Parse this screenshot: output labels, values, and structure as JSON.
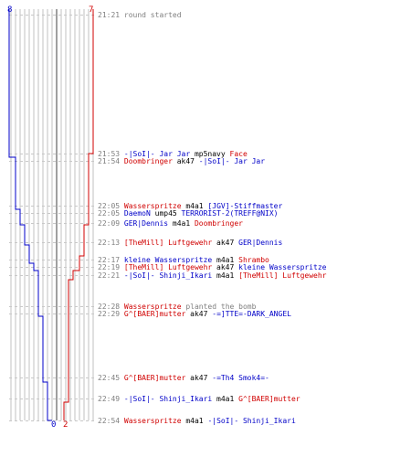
{
  "scoreboard": {
    "blue_start": "8",
    "red_start": "7",
    "blue_end": "0",
    "red_end": "2"
  },
  "colors": {
    "blue": "#0000c8",
    "red": "#d00000",
    "grey": "#7f7f7f",
    "gridline": "#c0c0c0",
    "dash": "#c8c8c8"
  },
  "events": [
    {
      "time": "21:21",
      "parts": [
        {
          "text": "round started",
          "color": "grey"
        }
      ]
    },
    {
      "time": "21:53",
      "parts": [
        {
          "text": "-|SoI|- Jar Jar",
          "color": "blue"
        },
        {
          "text": " mp5navy ",
          "color": "black"
        },
        {
          "text": "Face",
          "color": "red"
        }
      ]
    },
    {
      "time": "21:54",
      "parts": [
        {
          "text": "Doombringer",
          "color": "red"
        },
        {
          "text": " ak47 ",
          "color": "black"
        },
        {
          "text": "-|SoI|- Jar Jar",
          "color": "blue"
        }
      ]
    },
    {
      "time": "22:05",
      "parts": [
        {
          "text": "Wasserspritze",
          "color": "red"
        },
        {
          "text": " m4a1 ",
          "color": "black"
        },
        {
          "text": "[JGV]-Stiffmaster",
          "color": "blue"
        }
      ]
    },
    {
      "time": "22:05",
      "parts": [
        {
          "text": "DaemoN",
          "color": "blue"
        },
        {
          "text": " ump45 ",
          "color": "black"
        },
        {
          "text": "TERRORIST-2(TREFF@NIX)",
          "color": "blue"
        }
      ]
    },
    {
      "time": "22:09",
      "parts": [
        {
          "text": "GER|Dennis",
          "color": "blue"
        },
        {
          "text": " m4a1 ",
          "color": "black"
        },
        {
          "text": "Doombringer",
          "color": "red"
        }
      ]
    },
    {
      "time": "22:13",
      "parts": [
        {
          "text": "[TheMill] Luftgewehr",
          "color": "red"
        },
        {
          "text": " ak47 ",
          "color": "black"
        },
        {
          "text": "GER|Dennis",
          "color": "blue"
        }
      ]
    },
    {
      "time": "22:17",
      "parts": [
        {
          "text": "kleine Wasserspritze",
          "color": "blue"
        },
        {
          "text": " m4a1 ",
          "color": "black"
        },
        {
          "text": "Shrambo",
          "color": "red"
        }
      ]
    },
    {
      "time": "22:19",
      "parts": [
        {
          "text": "[TheMill] Luftgewehr",
          "color": "red"
        },
        {
          "text": " ak47 ",
          "color": "black"
        },
        {
          "text": "kleine Wasserspritze",
          "color": "blue"
        }
      ]
    },
    {
      "time": "22:21",
      "parts": [
        {
          "text": "-|SoI|- Shinji_Ikari",
          "color": "blue"
        },
        {
          "text": " m4a1 ",
          "color": "black"
        },
        {
          "text": "[TheMill] Luftgewehr",
          "color": "red"
        }
      ]
    },
    {
      "time": "22:28",
      "parts": [
        {
          "text": "Wasserspritze",
          "color": "red"
        },
        {
          "text": " planted the bomb",
          "color": "grey"
        }
      ]
    },
    {
      "time": "22:29",
      "parts": [
        {
          "text": "G^[BAER]mutter",
          "color": "red"
        },
        {
          "text": " ak47 ",
          "color": "black"
        },
        {
          "text": "-=]TTE=-DARK_ANGEL",
          "color": "blue"
        }
      ]
    },
    {
      "time": "22:45",
      "parts": [
        {
          "text": "G^[BAER]mutter",
          "color": "red"
        },
        {
          "text": " ak47 ",
          "color": "black"
        },
        {
          "text": "-=Th4 Smok4=-",
          "color": "blue"
        }
      ]
    },
    {
      "time": "22:49",
      "parts": [
        {
          "text": "-|SoI|- Shinji_Ikari",
          "color": "blue"
        },
        {
          "text": " m4a1 ",
          "color": "black"
        },
        {
          "text": "G^[BAER]mutter",
          "color": "red"
        }
      ]
    },
    {
      "time": "22:54",
      "parts": [
        {
          "text": "Wasserspritze",
          "color": "red"
        },
        {
          "text": " m4a1 ",
          "color": "black"
        },
        {
          "text": "-|SoI|- Shinji_Ikari",
          "color": "blue"
        }
      ]
    }
  ]
}
